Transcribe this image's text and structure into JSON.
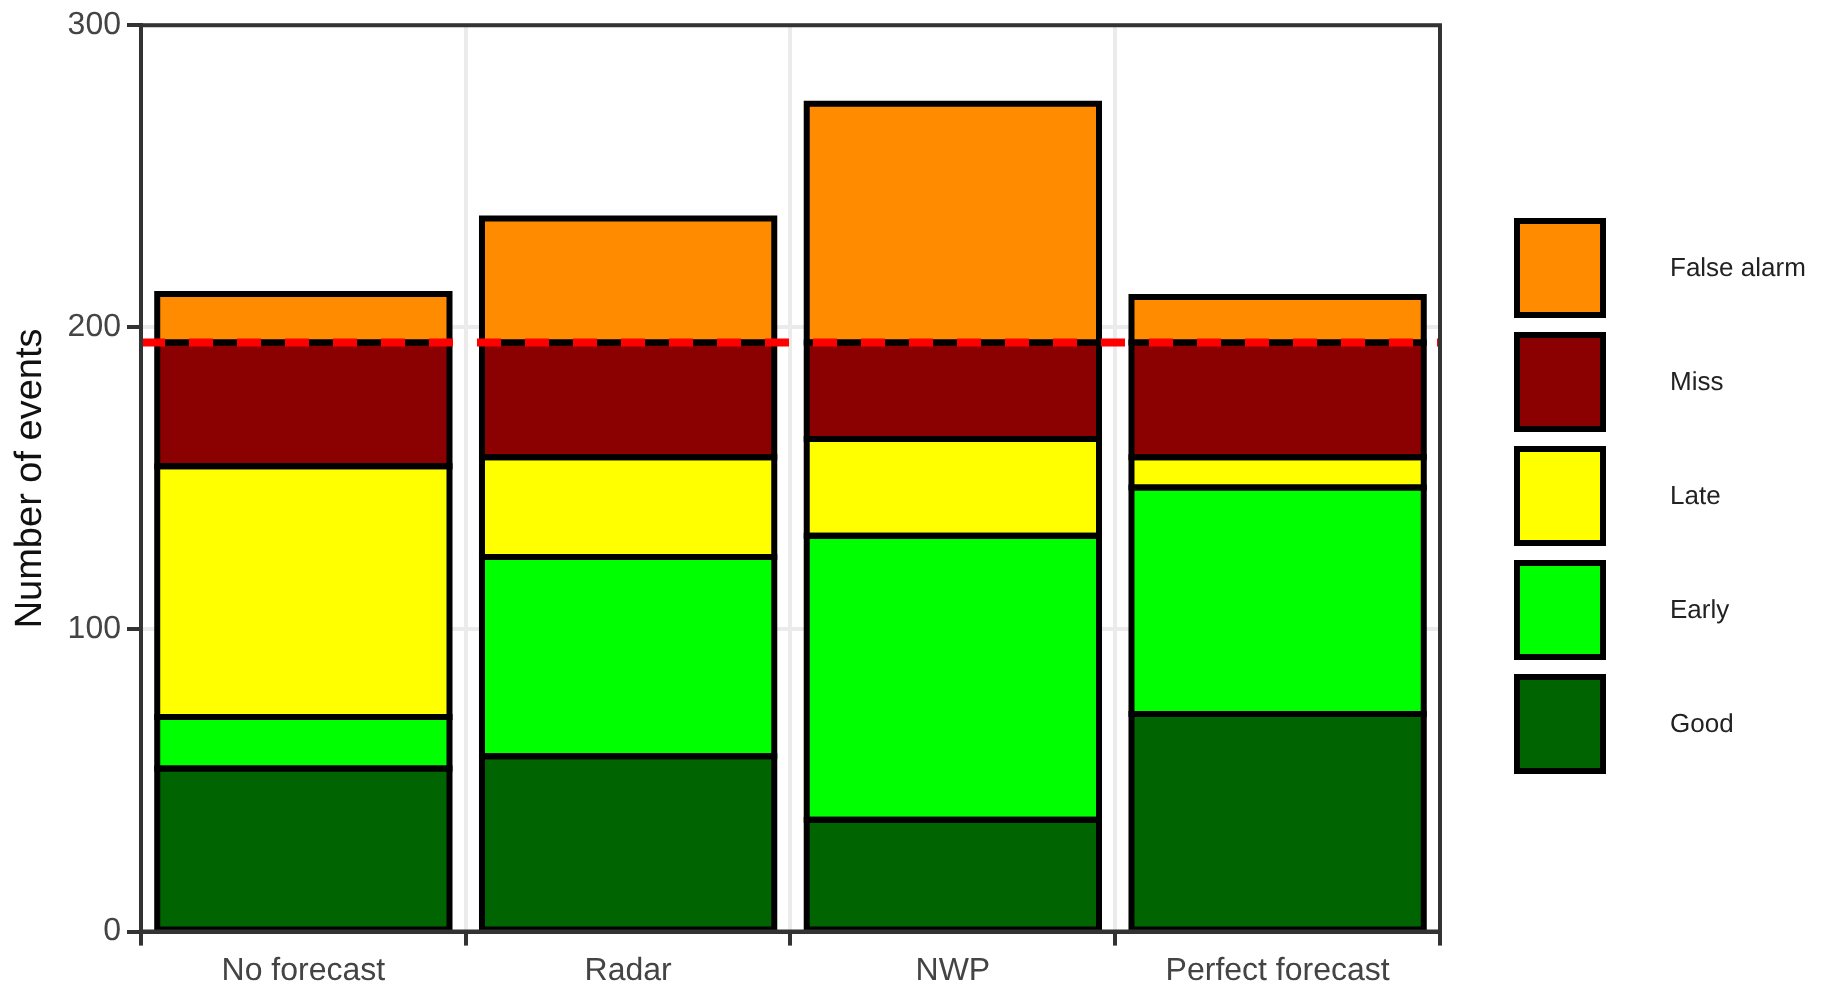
{
  "chart_data": {
    "type": "bar",
    "stacked": true,
    "ylabel": "Number of events",
    "categories": [
      "No forecast",
      "Radar",
      "NWP",
      "Perfect forecast"
    ],
    "series": [
      {
        "name": "Good",
        "color": "#006400",
        "values": [
          54,
          58,
          37,
          72
        ]
      },
      {
        "name": "Early",
        "color": "#00ff00",
        "values": [
          17,
          66,
          94,
          75
        ]
      },
      {
        "name": "Late",
        "color": "#ffff00",
        "values": [
          83,
          33,
          32,
          10
        ]
      },
      {
        "name": "Miss",
        "color": "#8b0000",
        "values": [
          41,
          38,
          32,
          38
        ]
      },
      {
        "name": "False alarm",
        "color": "#ff8c00",
        "values": [
          16,
          41,
          79,
          15
        ]
      }
    ],
    "ylim": [
      0,
      300
    ],
    "yticks": [
      0,
      100,
      200,
      300
    ],
    "grid": true,
    "legend": "right",
    "ref_lines": [
      {
        "axis": "y",
        "value": 195,
        "color": "#ff0000",
        "line_style": "dashed"
      }
    ]
  }
}
